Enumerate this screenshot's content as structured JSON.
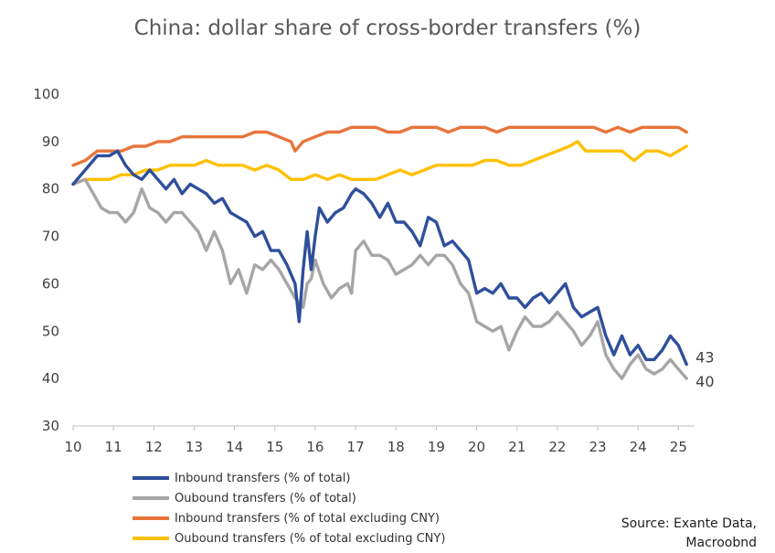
{
  "chart_data": {
    "type": "line",
    "title": "China: dollar share of cross-border transfers (%)",
    "xlabel": "",
    "ylabel": "",
    "x_ticks": [
      "10",
      "11",
      "12",
      "13",
      "14",
      "15",
      "16",
      "17",
      "18",
      "19",
      "20",
      "21",
      "22",
      "23",
      "24",
      "25"
    ],
    "xlim": [
      10,
      25.4
    ],
    "ylim": [
      30,
      100
    ],
    "y_ticks": [
      "30",
      "40",
      "50",
      "60",
      "70",
      "80",
      "90",
      "100"
    ],
    "grid": false,
    "legend_position": "bottom-left",
    "series": [
      {
        "name": "Inbound transfers (% of total)",
        "color": "#2F4F9C",
        "end_label": "43",
        "points": [
          [
            10,
            81
          ],
          [
            10.3,
            84
          ],
          [
            10.6,
            87
          ],
          [
            10.9,
            87
          ],
          [
            11.1,
            88
          ],
          [
            11.3,
            85
          ],
          [
            11.5,
            83
          ],
          [
            11.7,
            82
          ],
          [
            11.9,
            84
          ],
          [
            12.1,
            82
          ],
          [
            12.3,
            80
          ],
          [
            12.5,
            82
          ],
          [
            12.7,
            79
          ],
          [
            12.9,
            81
          ],
          [
            13.1,
            80
          ],
          [
            13.3,
            79
          ],
          [
            13.5,
            77
          ],
          [
            13.7,
            78
          ],
          [
            13.9,
            75
          ],
          [
            14.1,
            74
          ],
          [
            14.3,
            73
          ],
          [
            14.5,
            70
          ],
          [
            14.7,
            71
          ],
          [
            14.9,
            67
          ],
          [
            15.1,
            67
          ],
          [
            15.3,
            64
          ],
          [
            15.5,
            60
          ],
          [
            15.6,
            52
          ],
          [
            15.7,
            63
          ],
          [
            15.8,
            71
          ],
          [
            15.9,
            63
          ],
          [
            16,
            70
          ],
          [
            16.1,
            76
          ],
          [
            16.3,
            73
          ],
          [
            16.5,
            75
          ],
          [
            16.7,
            76
          ],
          [
            16.9,
            79
          ],
          [
            17,
            80
          ],
          [
            17.2,
            79
          ],
          [
            17.4,
            77
          ],
          [
            17.6,
            74
          ],
          [
            17.8,
            77
          ],
          [
            18,
            73
          ],
          [
            18.2,
            73
          ],
          [
            18.4,
            71
          ],
          [
            18.6,
            68
          ],
          [
            18.8,
            74
          ],
          [
            19,
            73
          ],
          [
            19.2,
            68
          ],
          [
            19.4,
            69
          ],
          [
            19.6,
            67
          ],
          [
            19.8,
            65
          ],
          [
            20,
            58
          ],
          [
            20.2,
            59
          ],
          [
            20.4,
            58
          ],
          [
            20.6,
            60
          ],
          [
            20.8,
            57
          ],
          [
            21,
            57
          ],
          [
            21.2,
            55
          ],
          [
            21.4,
            57
          ],
          [
            21.6,
            58
          ],
          [
            21.8,
            56
          ],
          [
            22,
            58
          ],
          [
            22.2,
            60
          ],
          [
            22.4,
            55
          ],
          [
            22.6,
            53
          ],
          [
            22.8,
            54
          ],
          [
            23,
            55
          ],
          [
            23.2,
            49
          ],
          [
            23.4,
            45
          ],
          [
            23.6,
            49
          ],
          [
            23.8,
            45
          ],
          [
            24,
            47
          ],
          [
            24.2,
            44
          ],
          [
            24.4,
            44
          ],
          [
            24.6,
            46
          ],
          [
            24.8,
            49
          ],
          [
            25,
            47
          ],
          [
            25.2,
            43
          ]
        ]
      },
      {
        "name": "Oubound transfers (% of total)",
        "color": "#A6A6A6",
        "end_label": "40",
        "points": [
          [
            10,
            81
          ],
          [
            10.3,
            82
          ],
          [
            10.5,
            79
          ],
          [
            10.7,
            76
          ],
          [
            10.9,
            75
          ],
          [
            11.1,
            75
          ],
          [
            11.3,
            73
          ],
          [
            11.5,
            75
          ],
          [
            11.7,
            80
          ],
          [
            11.9,
            76
          ],
          [
            12.1,
            75
          ],
          [
            12.3,
            73
          ],
          [
            12.5,
            75
          ],
          [
            12.7,
            75
          ],
          [
            12.9,
            73
          ],
          [
            13.1,
            71
          ],
          [
            13.3,
            67
          ],
          [
            13.5,
            71
          ],
          [
            13.7,
            67
          ],
          [
            13.9,
            60
          ],
          [
            14.1,
            63
          ],
          [
            14.3,
            58
          ],
          [
            14.5,
            64
          ],
          [
            14.7,
            63
          ],
          [
            14.9,
            65
          ],
          [
            15.1,
            63
          ],
          [
            15.3,
            60
          ],
          [
            15.5,
            57
          ],
          [
            15.7,
            55
          ],
          [
            15.8,
            60
          ],
          [
            15.9,
            61
          ],
          [
            16,
            65
          ],
          [
            16.2,
            60
          ],
          [
            16.4,
            57
          ],
          [
            16.6,
            59
          ],
          [
            16.8,
            60
          ],
          [
            16.9,
            58
          ],
          [
            17,
            67
          ],
          [
            17.2,
            69
          ],
          [
            17.4,
            66
          ],
          [
            17.6,
            66
          ],
          [
            17.8,
            65
          ],
          [
            18,
            62
          ],
          [
            18.2,
            63
          ],
          [
            18.4,
            64
          ],
          [
            18.6,
            66
          ],
          [
            18.8,
            64
          ],
          [
            19,
            66
          ],
          [
            19.2,
            66
          ],
          [
            19.4,
            64
          ],
          [
            19.6,
            60
          ],
          [
            19.8,
            58
          ],
          [
            20,
            52
          ],
          [
            20.2,
            51
          ],
          [
            20.4,
            50
          ],
          [
            20.6,
            51
          ],
          [
            20.8,
            46
          ],
          [
            21,
            50
          ],
          [
            21.2,
            53
          ],
          [
            21.4,
            51
          ],
          [
            21.6,
            51
          ],
          [
            21.8,
            52
          ],
          [
            22,
            54
          ],
          [
            22.2,
            52
          ],
          [
            22.4,
            50
          ],
          [
            22.6,
            47
          ],
          [
            22.8,
            49
          ],
          [
            23,
            52
          ],
          [
            23.2,
            45
          ],
          [
            23.4,
            42
          ],
          [
            23.6,
            40
          ],
          [
            23.8,
            43
          ],
          [
            24,
            45
          ],
          [
            24.2,
            42
          ],
          [
            24.4,
            41
          ],
          [
            24.6,
            42
          ],
          [
            24.8,
            44
          ],
          [
            25,
            42
          ],
          [
            25.2,
            40
          ]
        ]
      },
      {
        "name": "Inbound transfers (% of total excluding CNY)",
        "color": "#E8743B",
        "end_label": "",
        "points": [
          [
            10,
            85
          ],
          [
            10.3,
            86
          ],
          [
            10.6,
            88
          ],
          [
            10.9,
            88
          ],
          [
            11.2,
            88
          ],
          [
            11.5,
            89
          ],
          [
            11.8,
            89
          ],
          [
            12.1,
            90
          ],
          [
            12.4,
            90
          ],
          [
            12.7,
            91
          ],
          [
            13,
            91
          ],
          [
            13.3,
            91
          ],
          [
            13.6,
            91
          ],
          [
            13.9,
            91
          ],
          [
            14.2,
            91
          ],
          [
            14.5,
            92
          ],
          [
            14.8,
            92
          ],
          [
            15.1,
            91
          ],
          [
            15.4,
            90
          ],
          [
            15.5,
            88
          ],
          [
            15.7,
            90
          ],
          [
            16,
            91
          ],
          [
            16.3,
            92
          ],
          [
            16.6,
            92
          ],
          [
            16.9,
            93
          ],
          [
            17.2,
            93
          ],
          [
            17.5,
            93
          ],
          [
            17.8,
            92
          ],
          [
            18.1,
            92
          ],
          [
            18.4,
            93
          ],
          [
            18.7,
            93
          ],
          [
            19,
            93
          ],
          [
            19.3,
            92
          ],
          [
            19.6,
            93
          ],
          [
            19.9,
            93
          ],
          [
            20.2,
            93
          ],
          [
            20.5,
            92
          ],
          [
            20.8,
            93
          ],
          [
            21.1,
            93
          ],
          [
            21.4,
            93
          ],
          [
            21.7,
            93
          ],
          [
            22,
            93
          ],
          [
            22.3,
            93
          ],
          [
            22.6,
            93
          ],
          [
            22.9,
            93
          ],
          [
            23.2,
            92
          ],
          [
            23.5,
            93
          ],
          [
            23.8,
            92
          ],
          [
            24.1,
            93
          ],
          [
            24.4,
            93
          ],
          [
            24.7,
            93
          ],
          [
            25,
            93
          ],
          [
            25.2,
            92
          ]
        ]
      },
      {
        "name": "Oubound transfers (% of total excluding CNY)",
        "color": "#FFC000",
        "end_label": "",
        "points": [
          [
            10,
            81
          ],
          [
            10.3,
            82
          ],
          [
            10.6,
            82
          ],
          [
            10.9,
            82
          ],
          [
            11.2,
            83
          ],
          [
            11.5,
            83
          ],
          [
            11.8,
            84
          ],
          [
            12.1,
            84
          ],
          [
            12.4,
            85
          ],
          [
            12.7,
            85
          ],
          [
            13,
            85
          ],
          [
            13.3,
            86
          ],
          [
            13.6,
            85
          ],
          [
            13.9,
            85
          ],
          [
            14.2,
            85
          ],
          [
            14.5,
            84
          ],
          [
            14.8,
            85
          ],
          [
            15.1,
            84
          ],
          [
            15.4,
            82
          ],
          [
            15.7,
            82
          ],
          [
            16,
            83
          ],
          [
            16.3,
            82
          ],
          [
            16.6,
            83
          ],
          [
            16.9,
            82
          ],
          [
            17.2,
            82
          ],
          [
            17.5,
            82
          ],
          [
            17.8,
            83
          ],
          [
            18.1,
            84
          ],
          [
            18.4,
            83
          ],
          [
            18.7,
            84
          ],
          [
            19,
            85
          ],
          [
            19.3,
            85
          ],
          [
            19.6,
            85
          ],
          [
            19.9,
            85
          ],
          [
            20.2,
            86
          ],
          [
            20.5,
            86
          ],
          [
            20.8,
            85
          ],
          [
            21.1,
            85
          ],
          [
            21.4,
            86
          ],
          [
            21.7,
            87
          ],
          [
            22,
            88
          ],
          [
            22.3,
            89
          ],
          [
            22.5,
            90
          ],
          [
            22.7,
            88
          ],
          [
            23,
            88
          ],
          [
            23.3,
            88
          ],
          [
            23.6,
            88
          ],
          [
            23.9,
            86
          ],
          [
            24.2,
            88
          ],
          [
            24.5,
            88
          ],
          [
            24.8,
            87
          ],
          [
            25,
            88
          ],
          [
            25.2,
            89
          ]
        ]
      }
    ]
  },
  "source_line1": "Source: Exante Data,",
  "source_line2": "Macroobnd"
}
